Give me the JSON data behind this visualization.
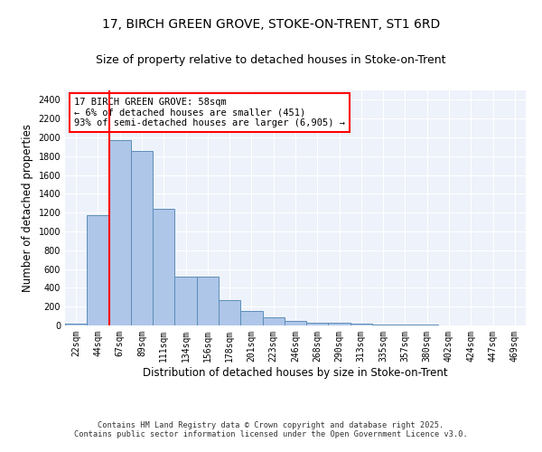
{
  "title_line1": "17, BIRCH GREEN GROVE, STOKE-ON-TRENT, ST1 6RD",
  "title_line2": "Size of property relative to detached houses in Stoke-on-Trent",
  "xlabel": "Distribution of detached houses by size in Stoke-on-Trent",
  "ylabel": "Number of detached properties",
  "categories": [
    "22sqm",
    "44sqm",
    "67sqm",
    "89sqm",
    "111sqm",
    "134sqm",
    "156sqm",
    "178sqm",
    "201sqm",
    "223sqm",
    "246sqm",
    "268sqm",
    "290sqm",
    "313sqm",
    "335sqm",
    "357sqm",
    "380sqm",
    "402sqm",
    "424sqm",
    "447sqm",
    "469sqm"
  ],
  "values": [
    20,
    1175,
    1975,
    1855,
    1245,
    515,
    515,
    270,
    155,
    88,
    50,
    33,
    33,
    18,
    8,
    5,
    5,
    3,
    2,
    2,
    2
  ],
  "bar_color": "#aec6e8",
  "bar_edge_color": "#5b8db8",
  "annotation_text": "17 BIRCH GREEN GROVE: 58sqm\n← 6% of detached houses are smaller (451)\n93% of semi-detached houses are larger (6,905) →",
  "annotation_box_color": "white",
  "annotation_edge_color": "red",
  "vline_color": "red",
  "vline_x": 1.5,
  "footer_line1": "Contains HM Land Registry data © Crown copyright and database right 2025.",
  "footer_line2": "Contains public sector information licensed under the Open Government Licence v3.0.",
  "ylim": [
    0,
    2500
  ],
  "yticks": [
    0,
    200,
    400,
    600,
    800,
    1000,
    1200,
    1400,
    1600,
    1800,
    2000,
    2200,
    2400
  ],
  "bg_color": "#eef2fa",
  "title_fontsize": 10,
  "subtitle_fontsize": 9,
  "axis_label_fontsize": 8.5,
  "tick_fontsize": 7,
  "annot_fontsize": 7.5
}
